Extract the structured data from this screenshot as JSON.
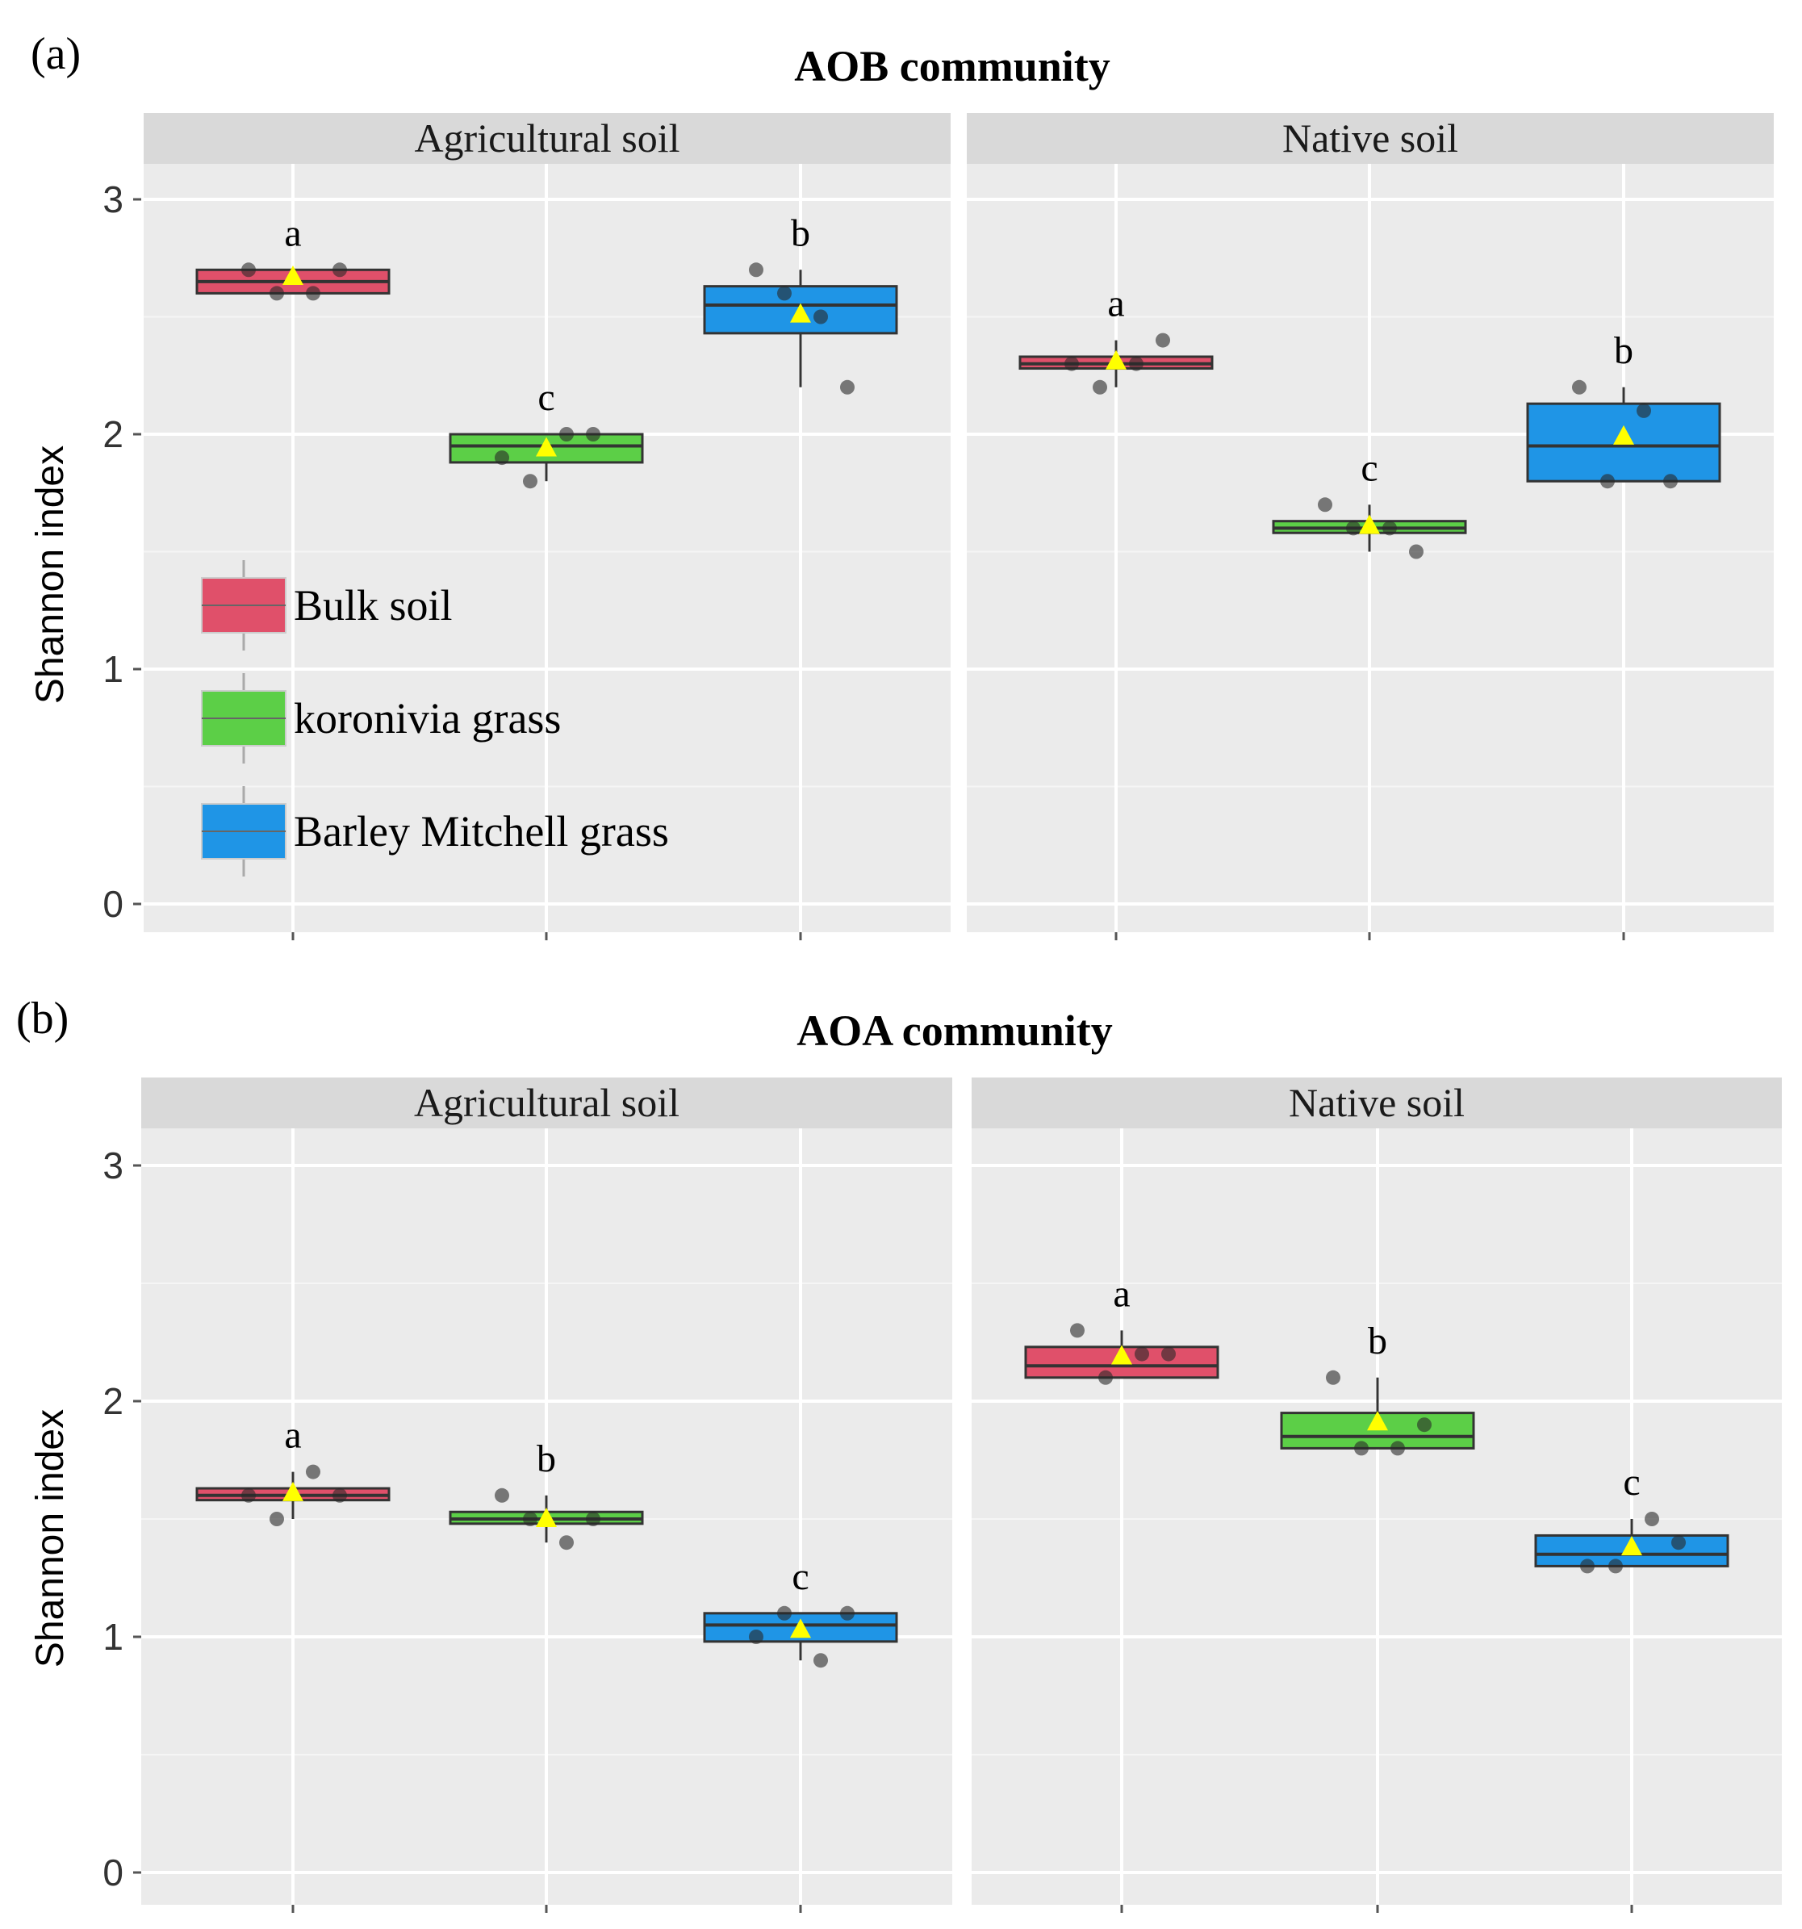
{
  "chart_data": [
    {
      "type": "boxplot",
      "panel_label": "(a)",
      "title": "AOB community",
      "ylabel": "Shannon index",
      "ylim": [
        0,
        3.2
      ],
      "yticks": [
        "0",
        "1",
        "2",
        "3"
      ],
      "facets": [
        "Agricultural soil",
        "Native soil"
      ],
      "groups": [
        "Bulk soil",
        "koronivia grass",
        "Barley Mitchell grass"
      ],
      "colors": [
        "#e0506a",
        "#5ccf47",
        "#1f95e6"
      ],
      "mean_marker_color": "#ffff00",
      "legend": {
        "placement": "left-inside",
        "entries": [
          "Bulk soil",
          "koronivia  grass",
          "Barley  Mitchell grass"
        ]
      },
      "boxes": [
        [
          {
            "group": "Bulk soil",
            "min": 2.6,
            "q1": 2.6,
            "median": 2.65,
            "q3": 2.7,
            "max": 2.7,
            "mean": 2.67,
            "letter": "a",
            "points": [
              2.7,
              2.6,
              2.6,
              2.7
            ]
          },
          {
            "group": "koronivia grass",
            "min": 1.8,
            "q1": 1.88,
            "median": 1.95,
            "q3": 2.0,
            "max": 2.0,
            "mean": 1.94,
            "letter": "c",
            "points": [
              1.9,
              1.8,
              2.0,
              2.0
            ]
          },
          {
            "group": "Barley Mitchell grass",
            "min": 2.2,
            "q1": 2.43,
            "median": 2.55,
            "q3": 2.63,
            "max": 2.7,
            "mean": 2.51,
            "letter": "b",
            "points": [
              2.7,
              2.6,
              2.5,
              2.2
            ]
          }
        ],
        [
          {
            "group": "Bulk soil",
            "min": 2.2,
            "q1": 2.28,
            "median": 2.3,
            "q3": 2.33,
            "max": 2.4,
            "mean": 2.31,
            "letter": "a",
            "points": [
              2.3,
              2.2,
              2.3,
              2.4
            ]
          },
          {
            "group": "koronivia grass",
            "min": 1.5,
            "q1": 1.58,
            "median": 1.6,
            "q3": 1.63,
            "max": 1.7,
            "mean": 1.61,
            "letter": "c",
            "points": [
              1.7,
              1.6,
              1.6,
              1.5
            ]
          },
          {
            "group": "Barley Mitchell grass",
            "min": 1.8,
            "q1": 1.8,
            "median": 1.95,
            "q3": 2.13,
            "max": 2.2,
            "mean": 1.99,
            "letter": "b",
            "points": [
              2.2,
              1.8,
              2.1,
              1.8
            ]
          }
        ]
      ]
    },
    {
      "type": "boxplot",
      "panel_label": "(b)",
      "title": "AOA community",
      "ylabel": "Shannon index",
      "ylim": [
        0,
        3.2
      ],
      "yticks": [
        "0",
        "1",
        "2",
        "3"
      ],
      "facets": [
        "Agricultural soil",
        "Native soil"
      ],
      "groups": [
        "Bulk soil",
        "koronivia grass",
        "Barley Mitchell grass"
      ],
      "colors": [
        "#e0506a",
        "#5ccf47",
        "#1f95e6"
      ],
      "mean_marker_color": "#ffff00",
      "boxes": [
        [
          {
            "group": "Bulk soil",
            "min": 1.5,
            "q1": 1.58,
            "median": 1.6,
            "q3": 1.63,
            "max": 1.7,
            "mean": 1.61,
            "letter": "a",
            "points": [
              1.6,
              1.5,
              1.7,
              1.6
            ]
          },
          {
            "group": "koronivia grass",
            "min": 1.4,
            "q1": 1.48,
            "median": 1.5,
            "q3": 1.53,
            "max": 1.6,
            "mean": 1.5,
            "letter": "b",
            "points": [
              1.6,
              1.5,
              1.4,
              1.5
            ]
          },
          {
            "group": "Barley Mitchell grass",
            "min": 0.9,
            "q1": 0.98,
            "median": 1.05,
            "q3": 1.1,
            "max": 1.1,
            "mean": 1.03,
            "letter": "c",
            "points": [
              1.0,
              1.1,
              0.9,
              1.1
            ]
          }
        ],
        [
          {
            "group": "Bulk soil",
            "min": 2.1,
            "q1": 2.1,
            "median": 2.15,
            "q3": 2.23,
            "max": 2.3,
            "mean": 2.19,
            "letter": "a",
            "points": [
              2.3,
              2.1,
              2.2,
              2.2
            ]
          },
          {
            "group": "koronivia grass",
            "min": 1.8,
            "q1": 1.8,
            "median": 1.85,
            "q3": 1.95,
            "max": 2.1,
            "mean": 1.91,
            "letter": "b",
            "points": [
              2.1,
              1.8,
              1.8,
              1.9
            ]
          },
          {
            "group": "Barley Mitchell grass",
            "min": 1.3,
            "q1": 1.3,
            "median": 1.35,
            "q3": 1.43,
            "max": 1.5,
            "mean": 1.38,
            "letter": "c",
            "points": [
              1.3,
              1.3,
              1.5,
              1.4
            ]
          }
        ]
      ]
    }
  ]
}
